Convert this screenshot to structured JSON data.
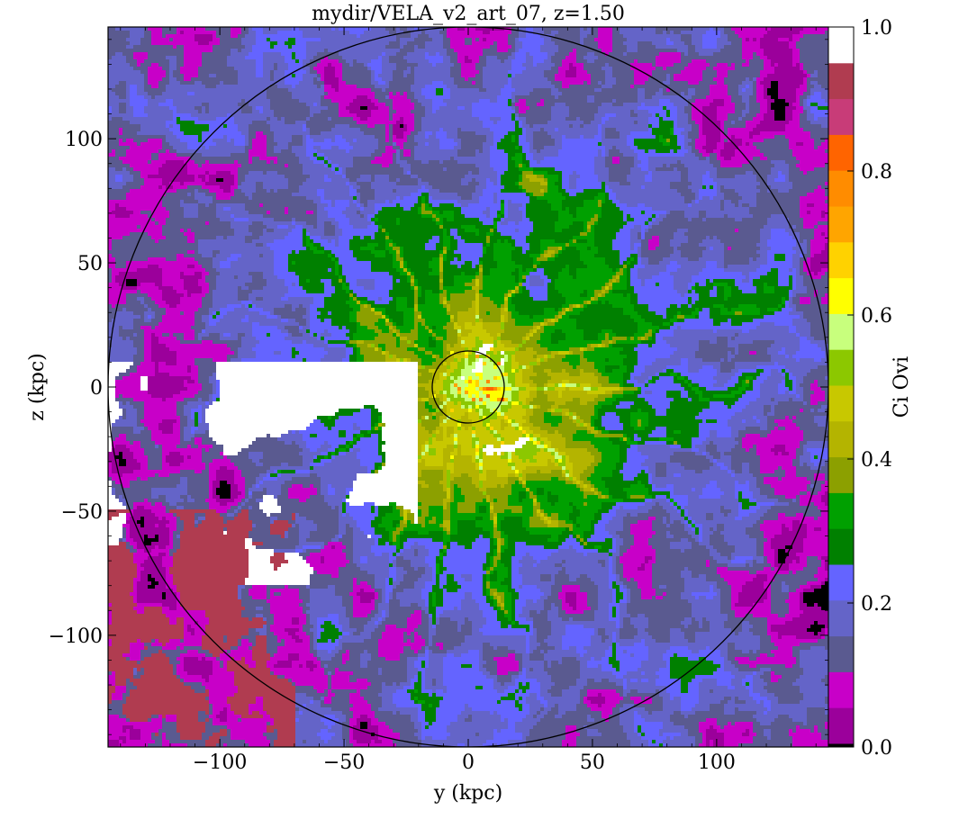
{
  "chart_data": {
    "type": "heatmap",
    "title": "mydir/VELA_v2_art_07, z=1.50",
    "xlabel": "y  (kpc)",
    "ylabel": "z  (kpc)",
    "xlim": [
      -145,
      145
    ],
    "ylim": [
      -145,
      145
    ],
    "xticks": [
      -100,
      -50,
      0,
      50,
      100
    ],
    "yticks": [
      -100,
      -50,
      0,
      50,
      100
    ],
    "xtick_labels": [
      "−100",
      "−50",
      "0",
      "50",
      "100"
    ],
    "ytick_labels": [
      "−100",
      "−50",
      "0",
      "50",
      "100"
    ],
    "colorbar": {
      "label": "Ci Ovi",
      "range": [
        0.0,
        1.0
      ],
      "ticks": [
        0.0,
        0.2,
        0.4,
        0.6,
        0.8,
        1.0
      ],
      "tick_labels": [
        "0.0",
        "0.2",
        "0.4",
        "0.6",
        "0.8",
        "1.0"
      ],
      "n_levels": 21,
      "colors": [
        "#000000",
        "#9b009b",
        "#c800c8",
        "#5a5a90",
        "#6464c8",
        "#6464ff",
        "#008000",
        "#00a000",
        "#8ca000",
        "#b4b400",
        "#c8c800",
        "#8cc800",
        "#c8ff7d",
        "#ffff00",
        "#ffd200",
        "#ffa500",
        "#ff8c00",
        "#ff6400",
        "#c83c78",
        "#b03c50",
        "#ffffff"
      ]
    },
    "overlays": [
      {
        "shape": "circle",
        "center": [
          0,
          0
        ],
        "radius": 145
      },
      {
        "shape": "circle",
        "center": [
          0,
          0
        ],
        "radius": 14.5
      }
    ]
  }
}
